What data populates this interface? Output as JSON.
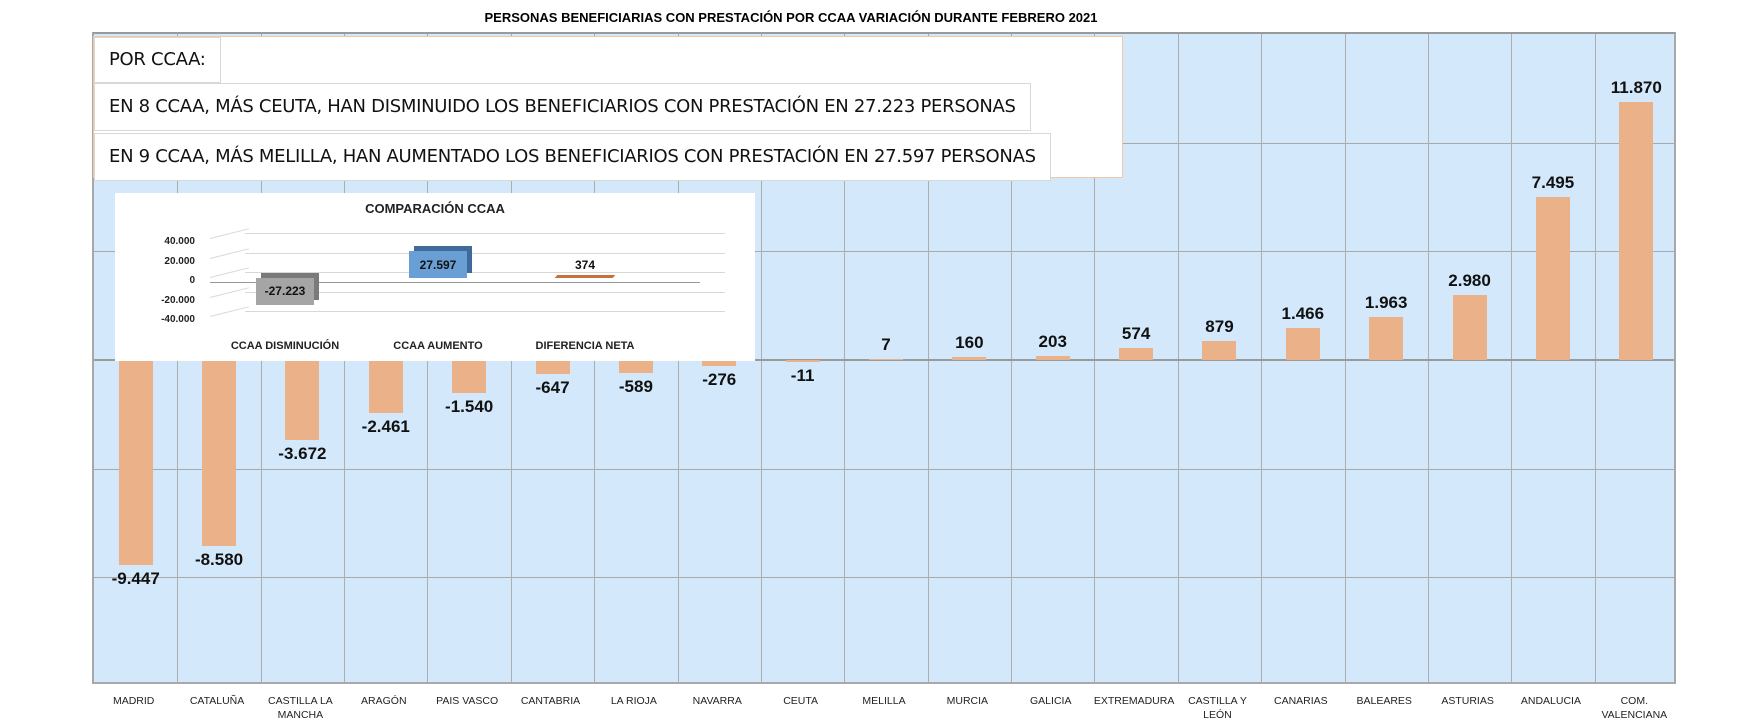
{
  "chart_data": [
    {
      "type": "bar",
      "title": "PERSONAS BENEFICIARIAS CON PRESTACIÓN POR CCAA VARIACIÓN DURANTE FEBRERO 2021",
      "xlabel": "",
      "ylabel": "",
      "ylim": [
        -15000,
        15000
      ],
      "grid": true,
      "legend": "none",
      "categories": [
        "MADRID",
        "CATALUÑA",
        "CASTILLA LA MANCHA",
        "ARAGÓN",
        "PAIS VASCO",
        "CANTABRIA",
        "LA RIOJA",
        "NAVARRA",
        "CEUTA",
        "MELILLA",
        "MURCIA",
        "GALICIA",
        "EXTREMADURA",
        "CASTILLA Y LEÓN",
        "CANARIAS",
        "BALEARES",
        "ASTURIAS",
        "ANDALUCIA",
        "COM. VALENCIANA"
      ],
      "values": [
        -9447,
        -8580,
        -3672,
        -2461,
        -1540,
        -647,
        -589,
        -276,
        -11,
        7,
        160,
        203,
        574,
        879,
        1466,
        1963,
        2980,
        7495,
        11870
      ],
      "value_labels": [
        "-9.447",
        "-8.580",
        "-3.672",
        "-2.461",
        "-1.540",
        "-647",
        "-589",
        "-276",
        "-11",
        "7",
        "160",
        "203",
        "574",
        "879",
        "1.466",
        "1.963",
        "2.980",
        "7.495",
        "11.870"
      ],
      "bar_color": "#ebb28a",
      "background_color": "#d3e9fb"
    },
    {
      "type": "bar",
      "title": "COMPARACIÓN CCAA",
      "categories": [
        "CCAA DISMINUCIÓN",
        "CCAA AUMENTO",
        "DIFERENCIA NETA"
      ],
      "values": [
        -27223,
        27597,
        374
      ],
      "value_labels": [
        "-27.223",
        "27.597",
        "374"
      ],
      "ylim": [
        -40000,
        40000
      ],
      "yticks": [
        "40.000",
        "20.000",
        "0",
        "-20.000",
        "-40.000"
      ],
      "colors": [
        "#a5a5a5",
        "#6a9fd6",
        "#c8703a"
      ],
      "style": "3d"
    }
  ],
  "notes": {
    "header": "POR CCAA:",
    "decrease": "EN 8 CCAA, MÁS CEUTA, HAN DISMINUIDO LOS BENEFICIARIOS CON PRESTACIÓN EN 27.223 PERSONAS",
    "increase": "EN 9 CCAA, MÁS MELILLA, HAN AUMENTADO LOS BENEFICIARIOS CON PRESTACIÓN EN 27.597 PERSONAS"
  }
}
